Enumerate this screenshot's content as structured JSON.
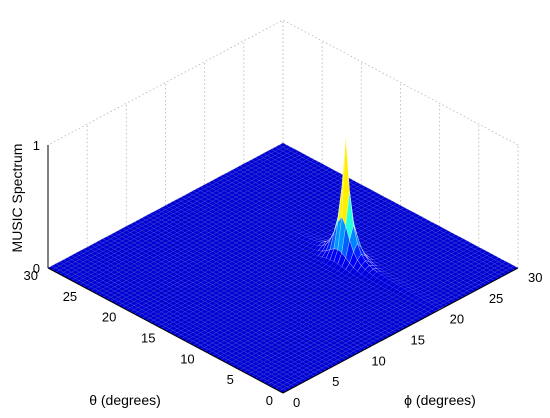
{
  "chart_data": {
    "type": "surface",
    "zlabel": "MUSIC Spectrum",
    "theta_label": "θ (degrees)",
    "phi_label": "ϕ (degrees)",
    "theta_range": [
      0,
      30
    ],
    "phi_range": [
      0,
      30
    ],
    "z_range": [
      0,
      1
    ],
    "theta_ticks": [
      "0",
      "5",
      "10",
      "15",
      "20",
      "25",
      "30"
    ],
    "phi_ticks": [
      "0",
      "5",
      "10",
      "15",
      "20",
      "25",
      "30"
    ],
    "z_ticks": [
      "0",
      "1"
    ],
    "grid": true,
    "peak": {
      "theta": 12,
      "phi": 20,
      "value": 1.0
    },
    "ridge": {
      "phi": 20,
      "level": 0.06
    },
    "colormap": [
      "#00008f",
      "#0000ff",
      "#00ffff",
      "#ffff00",
      "#ff0000",
      "#800000"
    ]
  }
}
